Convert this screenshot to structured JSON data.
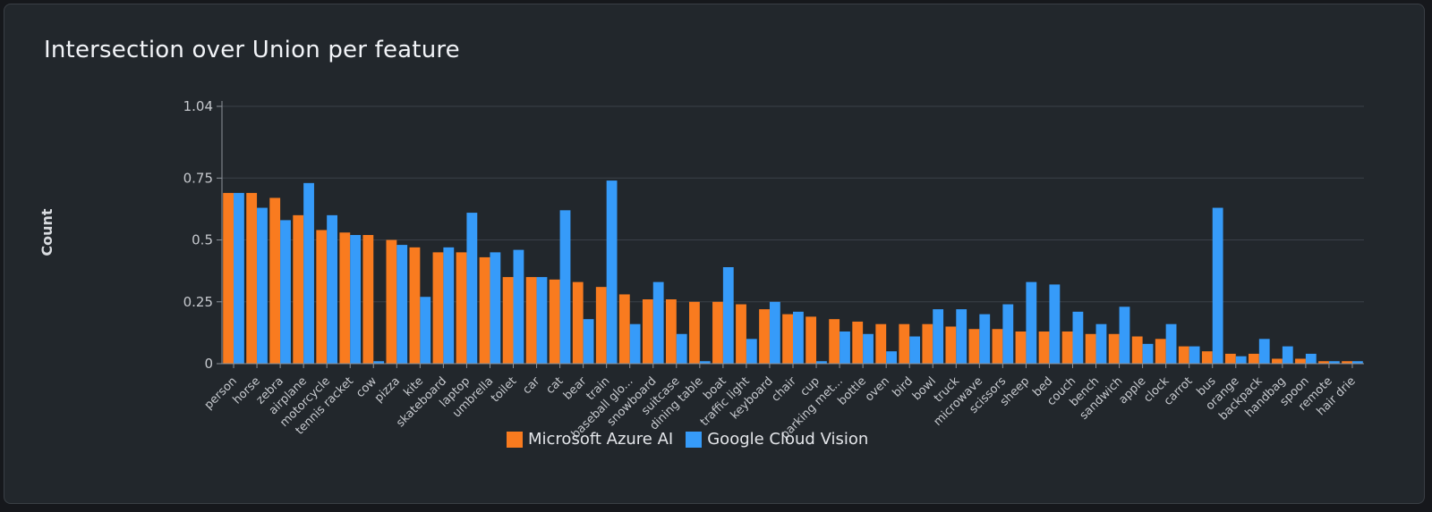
{
  "colors": {
    "azure": "#f97b1f",
    "google": "#369bf9"
  },
  "chart_data": {
    "type": "bar",
    "title": "Intersection over Union per feature",
    "xlabel": "",
    "ylabel": "Count",
    "ylim": [
      0,
      1.04
    ],
    "yticks": [
      {
        "value": 0,
        "label": "0"
      },
      {
        "value": 0.25,
        "label": "0.25"
      },
      {
        "value": 0.5,
        "label": "0.5"
      },
      {
        "value": 0.75,
        "label": "0.75"
      },
      {
        "value": 1.04,
        "label": "1.04"
      }
    ],
    "grid": true,
    "legend_position": "bottom",
    "categories": [
      "person",
      "horse",
      "zebra",
      "airplane",
      "motorcycle",
      "tennis racket",
      "cow",
      "pizza",
      "kite",
      "skateboard",
      "laptop",
      "umbrella",
      "toilet",
      "car",
      "cat",
      "bear",
      "train",
      "baseball glo...",
      "snowboard",
      "suitcase",
      "dining table",
      "boat",
      "traffic light",
      "keyboard",
      "chair",
      "cup",
      "parking met...",
      "bottle",
      "oven",
      "bird",
      "bowl",
      "truck",
      "microwave",
      "scissors",
      "sheep",
      "bed",
      "couch",
      "bench",
      "sandwich",
      "apple",
      "clock",
      "carrot",
      "bus",
      "orange",
      "backpack",
      "handbag",
      "spoon",
      "remote",
      "hair drie"
    ],
    "series": [
      {
        "name": "Microsoft Azure AI",
        "color": "#f97b1f",
        "values": [
          0.69,
          0.69,
          0.67,
          0.6,
          0.54,
          0.53,
          0.52,
          0.5,
          0.47,
          0.45,
          0.45,
          0.43,
          0.35,
          0.35,
          0.34,
          0.33,
          0.31,
          0.28,
          0.26,
          0.26,
          0.25,
          0.25,
          0.24,
          0.22,
          0.2,
          0.19,
          0.18,
          0.17,
          0.16,
          0.16,
          0.16,
          0.15,
          0.14,
          0.14,
          0.13,
          0.13,
          0.13,
          0.12,
          0.12,
          0.11,
          0.1,
          0.07,
          0.05,
          0.04,
          0.04,
          0.02,
          0.02,
          0.01,
          0.01
        ]
      },
      {
        "name": "Google Cloud Vision",
        "color": "#369bf9",
        "values": [
          0.69,
          0.63,
          0.58,
          0.73,
          0.6,
          0.52,
          0.01,
          0.48,
          0.27,
          0.47,
          0.61,
          0.45,
          0.46,
          0.35,
          0.62,
          0.18,
          0.74,
          0.16,
          0.33,
          0.12,
          0.01,
          0.39,
          0.1,
          0.25,
          0.21,
          0.01,
          0.13,
          0.12,
          0.05,
          0.11,
          0.22,
          0.22,
          0.2,
          0.24,
          0.33,
          0.32,
          0.21,
          0.16,
          0.23,
          0.08,
          0.16,
          0.07,
          0.63,
          0.03,
          0.1,
          0.07,
          0.04,
          0.01,
          0.01
        ]
      }
    ]
  }
}
